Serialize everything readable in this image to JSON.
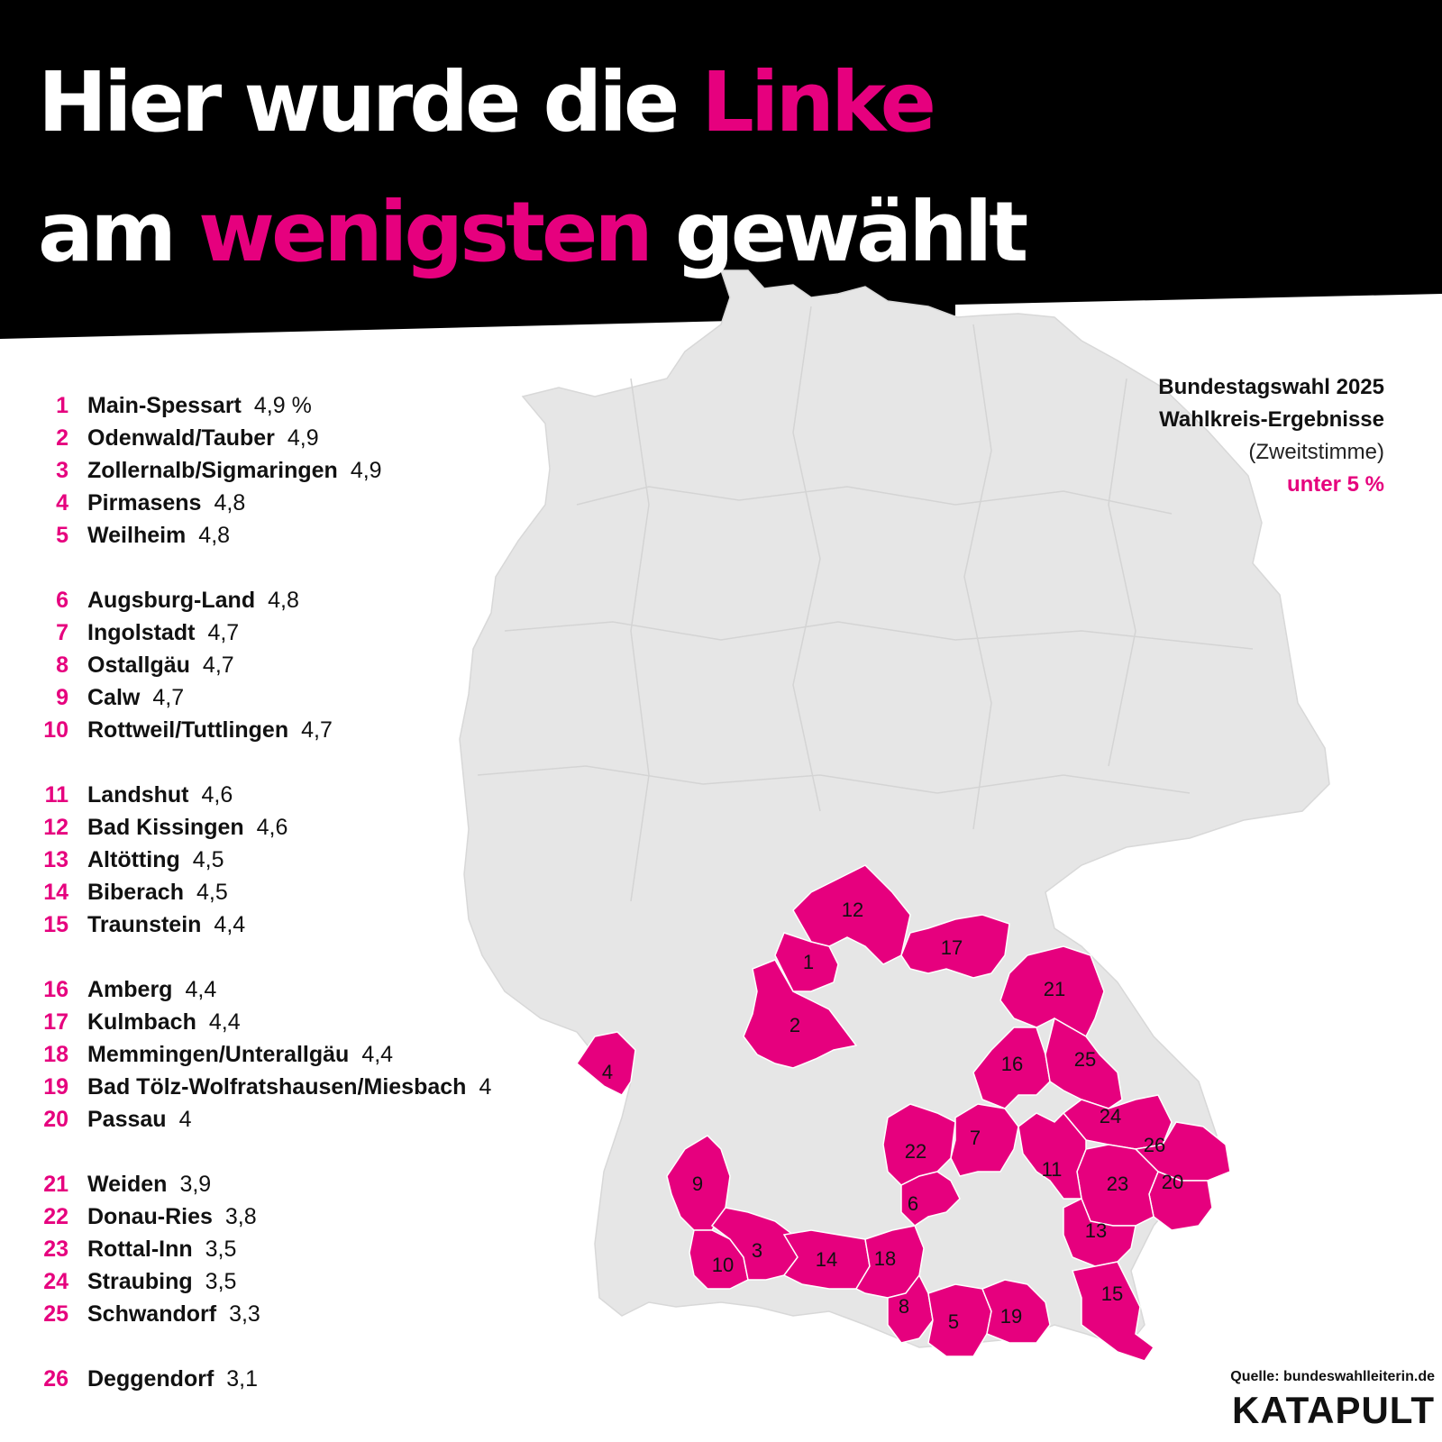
{
  "title": {
    "line1_white": "Hier wurde die",
    "line1_pink": "Linke",
    "line2_white_a": "am",
    "line2_pink": "wenigsten",
    "line2_white_b": "gewählt"
  },
  "legend": {
    "title1": "Bundestagswahl 2025",
    "title2": "Wahlkreis-Ergebnisse",
    "subtitle": "(Zweitstimme)",
    "category": "unter 5 %"
  },
  "colors": {
    "highlight": "#e6007e",
    "background_band": "#000000",
    "map_fill": "#e6e6e6",
    "map_border": "#d4d4d4"
  },
  "ranking": [
    {
      "rank": "1",
      "name": "Main-Spessart",
      "value": "4,9 %"
    },
    {
      "rank": "2",
      "name": "Odenwald/Tauber",
      "value": "4,9"
    },
    {
      "rank": "3",
      "name": "Zollernalb/Sigmaringen",
      "value": "4,9"
    },
    {
      "rank": "4",
      "name": "Pirmasens",
      "value": "4,8"
    },
    {
      "rank": "5",
      "name": "Weilheim",
      "value": "4,8"
    },
    {
      "rank": "6",
      "name": "Augsburg-Land",
      "value": "4,8"
    },
    {
      "rank": "7",
      "name": "Ingolstadt",
      "value": "4,7"
    },
    {
      "rank": "8",
      "name": "Ostallgäu",
      "value": "4,7"
    },
    {
      "rank": "9",
      "name": "Calw",
      "value": "4,7"
    },
    {
      "rank": "10",
      "name": "Rottweil/Tuttlingen",
      "value": "4,7"
    },
    {
      "rank": "11",
      "name": "Landshut",
      "value": "4,6"
    },
    {
      "rank": "12",
      "name": "Bad Kissingen",
      "value": "4,6"
    },
    {
      "rank": "13",
      "name": "Altötting",
      "value": "4,5"
    },
    {
      "rank": "14",
      "name": "Biberach",
      "value": "4,5"
    },
    {
      "rank": "15",
      "name": "Traunstein",
      "value": "4,4"
    },
    {
      "rank": "16",
      "name": "Amberg",
      "value": "4,4"
    },
    {
      "rank": "17",
      "name": "Kulmbach",
      "value": "4,4"
    },
    {
      "rank": "18",
      "name": "Memmingen/Unterallgäu",
      "value": "4,4"
    },
    {
      "rank": "19",
      "name": "Bad Tölz-Wolfratshausen/Miesbach",
      "value": "4"
    },
    {
      "rank": "20",
      "name": "Passau",
      "value": "4"
    },
    {
      "rank": "21",
      "name": "Weiden",
      "value": "3,9"
    },
    {
      "rank": "22",
      "name": "Donau-Ries",
      "value": "3,8"
    },
    {
      "rank": "23",
      "name": "Rottal-Inn",
      "value": "3,5"
    },
    {
      "rank": "24",
      "name": "Straubing",
      "value": "3,5"
    },
    {
      "rank": "25",
      "name": "Schwandorf",
      "value": "3,3"
    },
    {
      "rank": "26",
      "name": "Deggendorf",
      "value": "3,1"
    }
  ],
  "map_labels": [
    "1",
    "2",
    "3",
    "4",
    "5",
    "6",
    "7",
    "8",
    "9",
    "10",
    "11",
    "12",
    "13",
    "14",
    "15",
    "16",
    "17",
    "18",
    "19",
    "20",
    "21",
    "22",
    "23",
    "24",
    "25",
    "26"
  ],
  "source": "Quelle: bundeswahlleiterin.de",
  "brand": "KATAPULT"
}
